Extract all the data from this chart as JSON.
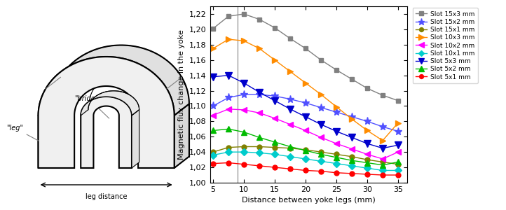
{
  "x": [
    5,
    7.5,
    10,
    12.5,
    15,
    17.5,
    20,
    22.5,
    25,
    27.5,
    30,
    32.5,
    35
  ],
  "series": [
    {
      "label": "Slot 15x3 mm",
      "color": "#808080",
      "marker": "s",
      "markersize": 5,
      "values": [
        1.201,
        1.217,
        1.22,
        1.213,
        1.202,
        1.188,
        1.175,
        1.16,
        1.147,
        1.135,
        1.123,
        1.114,
        1.107
      ]
    },
    {
      "label": "Slot 15x2 mm",
      "color": "#5050ff",
      "marker": "*",
      "markersize": 8,
      "values": [
        1.1,
        1.111,
        1.115,
        1.115,
        1.113,
        1.109,
        1.104,
        1.098,
        1.092,
        1.086,
        1.08,
        1.073,
        1.067
      ]
    },
    {
      "label": "Slot 15x1 mm",
      "color": "#808000",
      "marker": "o",
      "markersize": 5,
      "values": [
        1.04,
        1.046,
        1.047,
        1.047,
        1.046,
        1.045,
        1.043,
        1.04,
        1.037,
        1.034,
        1.03,
        1.027,
        1.024
      ]
    },
    {
      "label": "Slot 10x3 mm",
      "color": "#ff8c00",
      "marker": ">",
      "markersize": 6,
      "values": [
        1.175,
        1.187,
        1.185,
        1.175,
        1.16,
        1.145,
        1.13,
        1.115,
        1.099,
        1.083,
        1.068,
        1.055,
        1.078
      ]
    },
    {
      "label": "Slot 10x2 mm",
      "color": "#ff00ff",
      "marker": "<",
      "markersize": 6,
      "values": [
        1.088,
        1.096,
        1.095,
        1.091,
        1.084,
        1.076,
        1.068,
        1.059,
        1.051,
        1.044,
        1.037,
        1.031,
        1.04
      ]
    },
    {
      "label": "Slot 10x1 mm",
      "color": "#00cccc",
      "marker": "D",
      "markersize": 5,
      "values": [
        1.036,
        1.04,
        1.04,
        1.039,
        1.037,
        1.034,
        1.031,
        1.028,
        1.025,
        1.022,
        1.019,
        1.016,
        1.016
      ]
    },
    {
      "label": "Slot 5x3 mm",
      "color": "#0000cc",
      "marker": "v",
      "markersize": 7,
      "values": [
        1.138,
        1.14,
        1.13,
        1.118,
        1.107,
        1.096,
        1.086,
        1.076,
        1.067,
        1.059,
        1.051,
        1.045,
        1.049
      ]
    },
    {
      "label": "Slot 5x2 mm",
      "color": "#00bb00",
      "marker": "^",
      "markersize": 6,
      "values": [
        1.068,
        1.07,
        1.066,
        1.059,
        1.053,
        1.047,
        1.042,
        1.037,
        1.033,
        1.029,
        1.026,
        1.023,
        1.027
      ]
    },
    {
      "label": "Slot 5x1 mm",
      "color": "#ff0000",
      "marker": "o",
      "markersize": 5,
      "values": [
        1.025,
        1.026,
        1.024,
        1.022,
        1.02,
        1.018,
        1.016,
        1.015,
        1.013,
        1.012,
        1.011,
        1.01,
        1.01
      ]
    }
  ],
  "vline_x": 9.0,
  "xlim": [
    4.5,
    36.5
  ],
  "ylim": [
    1.0,
    1.23
  ],
  "xticks": [
    5,
    10,
    15,
    20,
    25,
    30,
    35
  ],
  "yticks": [
    1.0,
    1.02,
    1.04,
    1.06,
    1.08,
    1.1,
    1.12,
    1.14,
    1.16,
    1.18,
    1.2,
    1.22
  ],
  "xlabel": "Distance between yoke legs (mm)",
  "ylabel": "Magnetic flux change in the yoke",
  "figure_bg": "#ffffff",
  "axes_bg": "#ffffff"
}
